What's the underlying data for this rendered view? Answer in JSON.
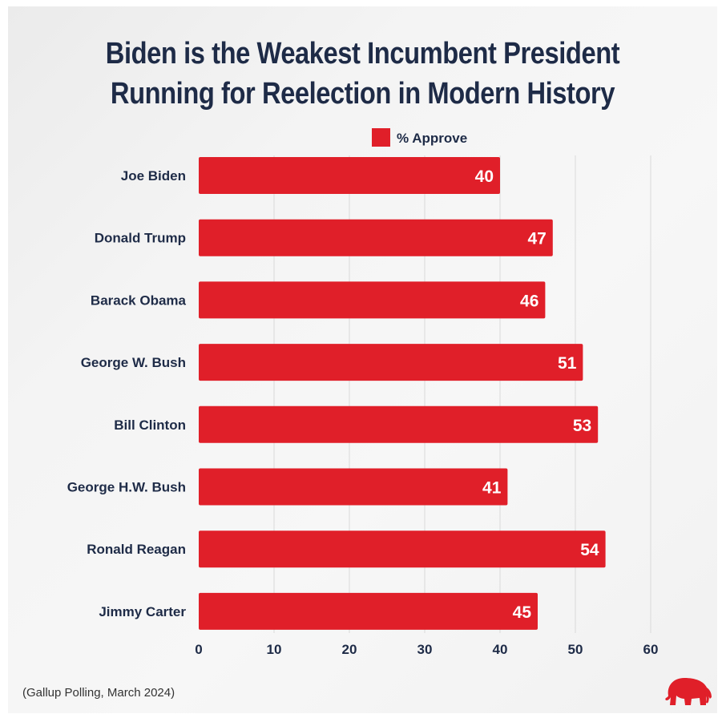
{
  "chart_data": {
    "type": "bar",
    "orientation": "horizontal",
    "title": "Biden is the Weakest Incumbent President Running for Reelection in Modern History",
    "title_lines": [
      "Biden is the Weakest Incumbent President",
      "Running for Reelection in Modern History"
    ],
    "categories": [
      "Joe Biden",
      "Donald Trump",
      "Barack Obama",
      "George W. Bush",
      "Bill Clinton",
      "George H.W. Bush",
      "Ronald Reagan",
      "Jimmy Carter"
    ],
    "series": [
      {
        "name": "% Approve",
        "values": [
          40,
          47,
          46,
          51,
          53,
          41,
          54,
          45
        ],
        "color": "#e01f29"
      }
    ],
    "xlim": [
      0,
      60
    ],
    "ticks": [
      0,
      10,
      20,
      30,
      40,
      50,
      60
    ],
    "grid": true,
    "legend_position": "top-center",
    "title_color": "#1e2b47"
  },
  "source_note": "(Gallup Polling, March 2024)",
  "logo_icon": "elephant-icon"
}
